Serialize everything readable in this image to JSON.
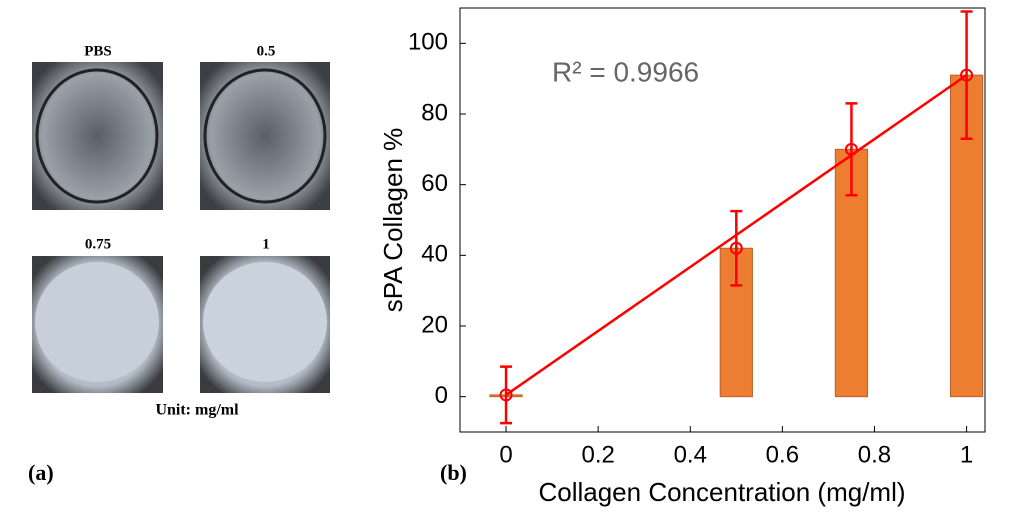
{
  "panel_a": {
    "images": [
      {
        "label": "PBS"
      },
      {
        "label": "0.5"
      },
      {
        "label": "0.75"
      },
      {
        "label": "1"
      }
    ],
    "unit": "Unit: mg/ml",
    "tag": "(a)"
  },
  "chart_data": {
    "type": "bar",
    "tag": "(b)",
    "x_label": "Collagen Concentration (mg/ml)",
    "y_label": "sPA Collagen %",
    "annotation": "R² = 0.9966",
    "x": [
      0,
      0.5,
      0.75,
      1
    ],
    "values": [
      0.5,
      42,
      70,
      91
    ],
    "errors": [
      8,
      10.5,
      13,
      18
    ],
    "bar_color": "#ed7d31",
    "line_color": "#ff0000",
    "fit": {
      "x": [
        0,
        1
      ],
      "y": [
        0.5,
        91
      ]
    },
    "xlim": [
      -0.1,
      1.04
    ],
    "xticks": [
      0,
      0.2,
      0.4,
      0.6,
      0.8,
      1
    ],
    "ylim": [
      -10,
      110
    ],
    "yticks": [
      0,
      20,
      40,
      60,
      80,
      100
    ]
  }
}
